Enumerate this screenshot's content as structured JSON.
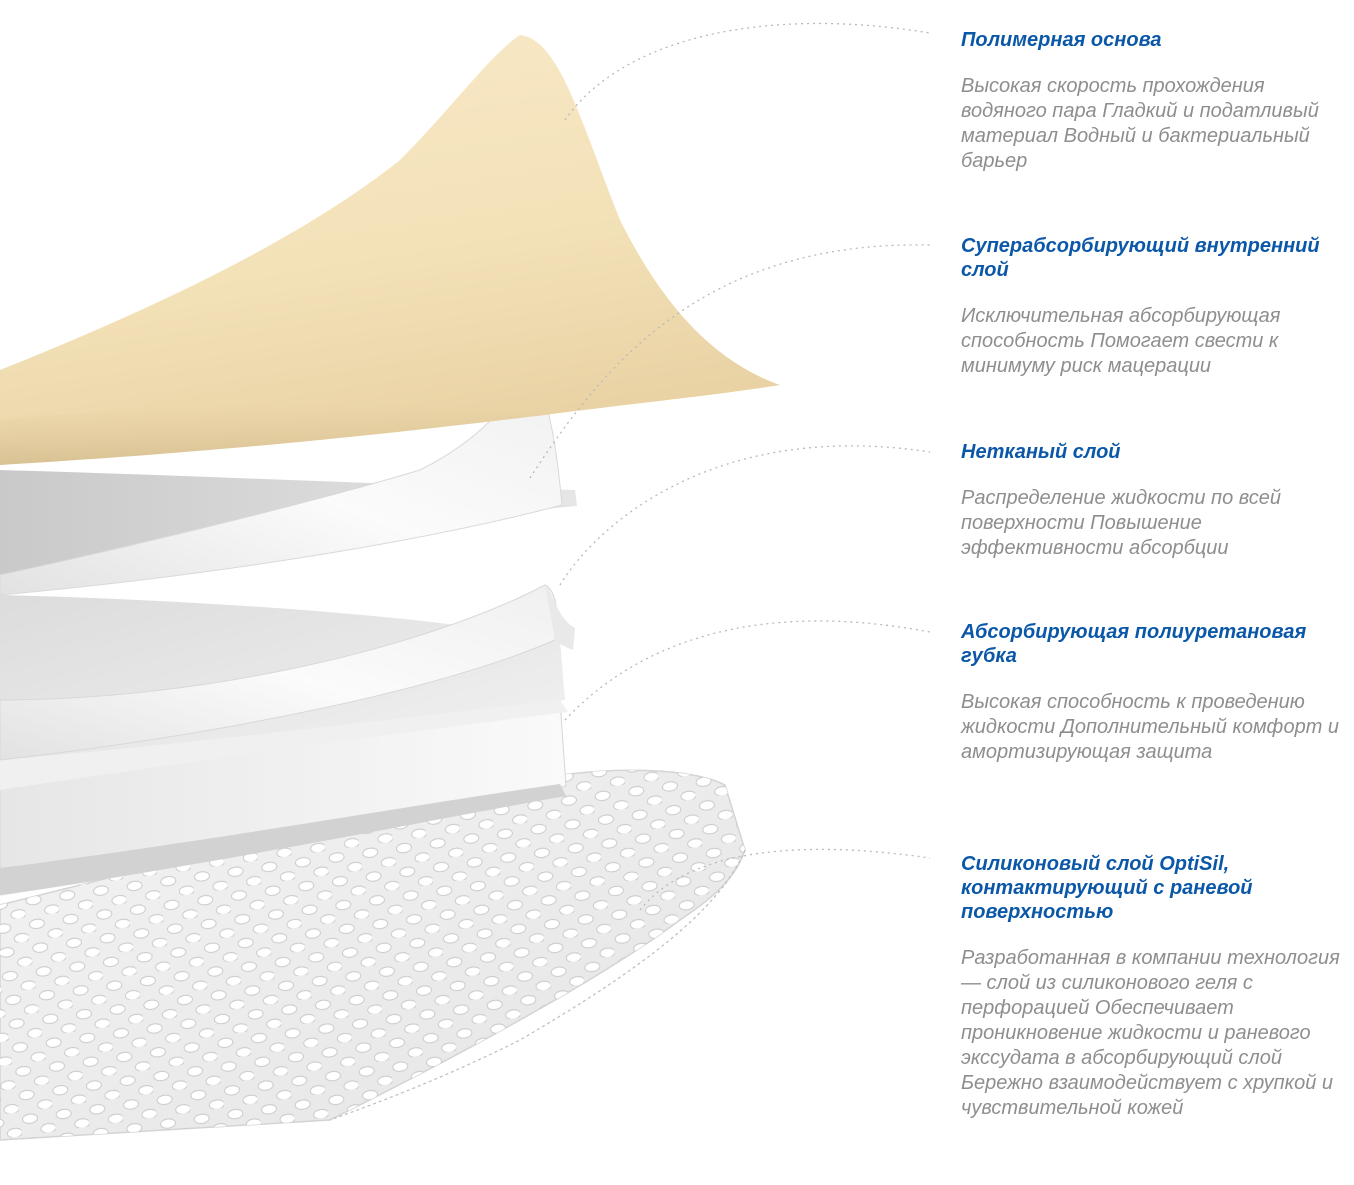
{
  "layers": [
    {
      "title": "Полимерная основа",
      "description": "Высокая скорость прохождения водяного пара Гладкий и податливый материал Водный и бактериальный барьер"
    },
    {
      "title": "Суперабсорбирующий внутренний слой",
      "description": "Исключительная абсорбирующая способность Помогает свести к минимуму риск мацерации"
    },
    {
      "title": "Нетканый слой",
      "description": "Распределение жидкости по всей поверхности Повышение эффективности абсорбции"
    },
    {
      "title": "Абсорбирующая полиуретановая губка",
      "description": "Высокая способность к проведению жидкости Дополнительный комфорт и амортизирующая защита"
    },
    {
      "title": "Силиконовый слой OptiSil, контактирующий с раневой поверхностью",
      "description": "Разработанная в компании технология — слой из силиконового геля с перфорацией Обеспечивает проникновение жидкости и раневого экссудата в абсорбирующий слой Бережно взаимодействует с хрупкой и чувствительной кожей"
    }
  ],
  "colors": {
    "title": "#0b57a8",
    "description": "#8e8e8e",
    "backing_film": "#f6e5c0",
    "leader_line": "#b9b9b9"
  }
}
